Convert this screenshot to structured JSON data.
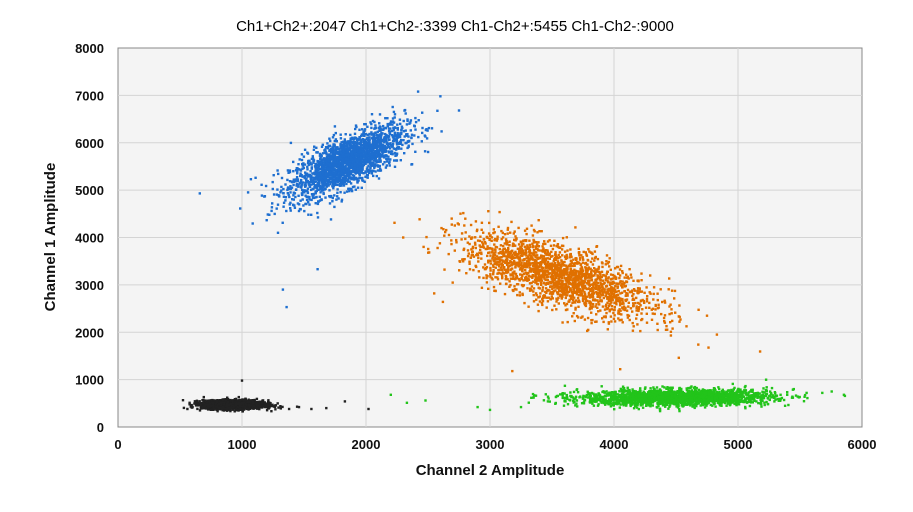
{
  "chart_data": {
    "type": "scatter",
    "title": "Ch1+Ch2+:2047  Ch1+Ch2-:3399  Ch1-Ch2+:5455  Ch1-Ch2-:9000",
    "xlabel": "Channel 2 Amplitude",
    "ylabel": "Channel 1 Amplitude",
    "xlim": [
      0,
      6000
    ],
    "ylim": [
      0,
      8000
    ],
    "xticks": [
      0,
      1000,
      2000,
      3000,
      4000,
      5000,
      6000
    ],
    "yticks": [
      0,
      1000,
      2000,
      3000,
      4000,
      5000,
      6000,
      7000,
      8000
    ],
    "grid": true,
    "plot_background": "#f4f4f4",
    "clusters": [
      {
        "label": "Ch1+Ch2-",
        "color": "#1e6fd0",
        "count": 3399,
        "center": [
          1850,
          5600
        ],
        "spread": [
          230,
          380
        ],
        "corr": 0.72,
        "tilt": 0.95,
        "outliers": [
          [
            660,
            4930
          ],
          [
            1110,
            5260
          ],
          [
            1330,
            2900
          ],
          [
            1360,
            2530
          ],
          [
            1610,
            3330
          ],
          [
            1220,
            4480
          ],
          [
            1290,
            4100
          ],
          [
            2750,
            6680
          ],
          [
            2600,
            6980
          ],
          [
            2420,
            7080
          ]
        ]
      },
      {
        "label": "Ch1+Ch2+",
        "color": "#e07000",
        "count": 2047,
        "center": [
          3550,
          3200
        ],
        "spread": [
          380,
          440
        ],
        "corr": -0.7,
        "outliers": [
          [
            2230,
            4310
          ],
          [
            2300,
            4000
          ],
          [
            2550,
            2820
          ],
          [
            2620,
            2640
          ],
          [
            3180,
            1180
          ],
          [
            4050,
            1220
          ],
          [
            4830,
            1950
          ],
          [
            4750,
            2350
          ],
          [
            4360,
            2580
          ],
          [
            4680,
            1740
          ]
        ]
      },
      {
        "label": "Ch1-Ch2+",
        "color": "#22c41a",
        "count": 5455,
        "center": [
          4500,
          620
        ],
        "spread": [
          380,
          85
        ],
        "corr": 0.1,
        "outliers": [
          [
            2200,
            680
          ],
          [
            2330,
            510
          ],
          [
            2480,
            560
          ],
          [
            2900,
            420
          ],
          [
            3000,
            360
          ],
          [
            3250,
            420
          ],
          [
            3350,
            620
          ],
          [
            3450,
            690
          ],
          [
            5450,
            800
          ],
          [
            5560,
            610
          ],
          [
            5680,
            720
          ]
        ]
      },
      {
        "label": "Ch1-Ch2-",
        "color": "#222222",
        "count": 9000,
        "center": [
          930,
          470
        ],
        "spread": [
          120,
          45
        ],
        "corr": 0.0,
        "outliers": [
          [
            560,
            380
          ],
          [
            1000,
            980
          ],
          [
            1190,
            470
          ],
          [
            1310,
            440
          ],
          [
            1380,
            380
          ],
          [
            1460,
            420
          ],
          [
            1560,
            380
          ],
          [
            1680,
            400
          ],
          [
            1830,
            540
          ],
          [
            2020,
            380
          ]
        ]
      }
    ]
  }
}
